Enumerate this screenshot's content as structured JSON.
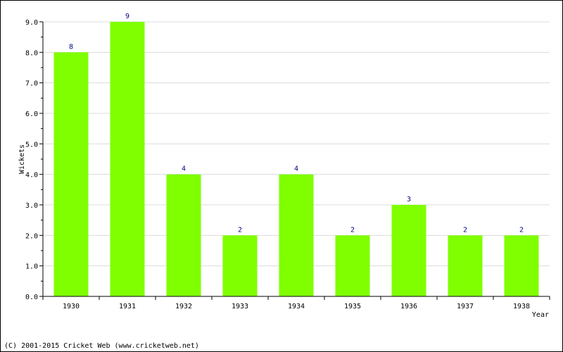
{
  "chart_data": {
    "type": "bar",
    "categories": [
      "1930",
      "1931",
      "1932",
      "1933",
      "1934",
      "1935",
      "1936",
      "1937",
      "1938"
    ],
    "values": [
      8,
      9,
      4,
      2,
      4,
      2,
      3,
      2,
      2
    ],
    "data_labels": [
      "8",
      "9",
      "4",
      "2",
      "4",
      "2",
      "3",
      "2",
      "2"
    ],
    "xlabel": "Year",
    "ylabel": "Wickets",
    "ylim": [
      0,
      9
    ],
    "yticks": [
      0,
      1,
      2,
      3,
      4,
      5,
      6,
      7,
      8,
      9
    ],
    "ytick_labels": [
      "0.0",
      "1.0",
      "2.0",
      "3.0",
      "4.0",
      "5.0",
      "6.0",
      "7.0",
      "8.0",
      "9.0"
    ],
    "grid": true,
    "bar_color": "#7fff00",
    "label_color": "#00008b"
  },
  "footer": {
    "copyright": "(C) 2001-2015 Cricket Web (www.cricketweb.net)"
  }
}
